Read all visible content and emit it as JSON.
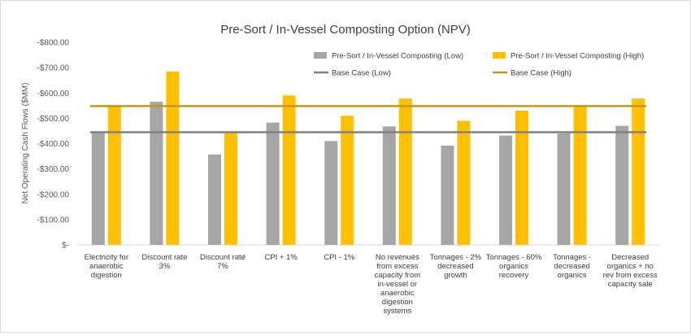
{
  "chart_data": {
    "type": "bar",
    "title": "Pre-Sort / In-Vessel Composting Option (NPV)",
    "xlabel": "",
    "ylabel": "Net Operating Cash Flows ($MM)",
    "ylim": [
      0,
      800
    ],
    "yticks": [
      {
        "value": 0,
        "label": "$-"
      },
      {
        "value": 100,
        "label": "-$100.00"
      },
      {
        "value": 200,
        "label": "-$200.00"
      },
      {
        "value": 300,
        "label": "-$300.00"
      },
      {
        "value": 400,
        "label": "-$400.00"
      },
      {
        "value": 500,
        "label": "-$500.00"
      },
      {
        "value": 600,
        "label": "-$600.00"
      },
      {
        "value": 700,
        "label": "-$700.00"
      },
      {
        "value": 800,
        "label": "-$800.00"
      }
    ],
    "categories": [
      [
        "Electricity for",
        "anaerobic",
        "digestion"
      ],
      [
        "Discount rate",
        "3%"
      ],
      [
        "Discount rate",
        "7%"
      ],
      [
        "CPI + 1%"
      ],
      [
        "CPI - 1%"
      ],
      [
        "No revenues",
        "from excess",
        "capacity from",
        "in-vessel or",
        "anaerobic",
        "digestion",
        "systems"
      ],
      [
        "Tonnages - 2%",
        "decreased",
        "growth"
      ],
      [
        "Tonnages - 60%",
        "organics",
        "recovery"
      ],
      [
        "Tonnages -",
        "decreased",
        "organics"
      ],
      [
        "Decreased",
        "organics + no",
        "rev from excess",
        "capacity sale"
      ]
    ],
    "series": [
      {
        "name": "Pre-Sort / In-Vessel Composting (Low)",
        "color": "#a6a6a6",
        "values": [
          445,
          565,
          357,
          483,
          410,
          468,
          392,
          432,
          440,
          470
        ]
      },
      {
        "name": "Pre-Sort / In-Vessel Composting (High)",
        "color": "#ffc000",
        "values": [
          550,
          685,
          443,
          590,
          510,
          578,
          490,
          530,
          545,
          578
        ]
      }
    ],
    "reference_lines": [
      {
        "name": "Base Case (Low)",
        "color": "#808080",
        "value": 445
      },
      {
        "name": "Base Case (High)",
        "color": "#c09a16",
        "value": 548
      }
    ],
    "grid": false,
    "legend_position": "top-right"
  }
}
